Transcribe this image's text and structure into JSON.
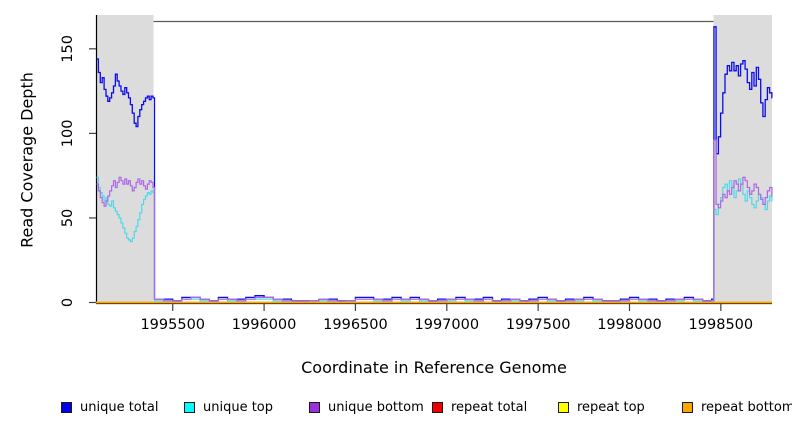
{
  "figure": {
    "background": "#FFFFFF",
    "plot_background": "#FFFFFF"
  },
  "chart_data": {
    "type": "line",
    "title": "",
    "xlabel": "Coordinate in Reference Genome",
    "ylabel": "Read Coverage Depth",
    "xlim": [
      1995080,
      1998780
    ],
    "ylim": [
      0,
      170
    ],
    "xticks": [
      1995500,
      1996000,
      1996500,
      1997000,
      1997500,
      1998000,
      1998500
    ],
    "yticks": [
      0,
      50,
      100,
      150
    ],
    "grid": false,
    "legend_position": "bottom",
    "shade_color": "#DCDCDC",
    "shaded_regions": [
      {
        "x0": 1995080,
        "x1": 1995395
      },
      {
        "x0": 1998460,
        "x1": 1998780
      }
    ],
    "legend": [
      {
        "label": "unique total",
        "color": "#0000EE"
      },
      {
        "label": "unique top",
        "color": "#00FFFF"
      },
      {
        "label": "unique bottom",
        "color": "#9B30D9"
      },
      {
        "label": "repeat total",
        "color": "#EE0000"
      },
      {
        "label": "repeat top",
        "color": "#FFFF00"
      },
      {
        "label": "repeat bottom",
        "color": "#FFA500"
      }
    ],
    "series": [
      {
        "name": "unique total",
        "color": "#0B0BEE",
        "width": 1.3,
        "segments": [
          {
            "x0": 1995083,
            "dx": 10.3,
            "y": [
              144,
              136,
              130,
              133,
              126,
              122,
              119,
              121,
              124,
              128,
              135,
              131,
              128,
              125,
              123,
              127,
              124,
              121,
              117,
              112,
              106,
              104,
              110,
              114,
              117,
              119,
              121,
              122,
              120,
              122,
              121
            ]
          },
          {
            "x0": 1995400,
            "dx": 50,
            "y": [
              2,
              2,
              1,
              3,
              3,
              2,
              1,
              3,
              2,
              2,
              3,
              4,
              3,
              2,
              2,
              1,
              1,
              1,
              2,
              2,
              1,
              1,
              3,
              3,
              2,
              2,
              3,
              2,
              3,
              2,
              1,
              2,
              2,
              3,
              2,
              2,
              3,
              1,
              2,
              2,
              1,
              2,
              3,
              2,
              1,
              2,
              2,
              3,
              2,
              1,
              1,
              2,
              3,
              2,
              2,
              1,
              2,
              2,
              3,
              2,
              1,
              2
            ]
          },
          {
            "x0": 1998462,
            "dx": 12.2,
            "y": [
              163,
              88,
              98,
              112,
              124,
              135,
              140,
              137,
              142,
              137,
              140,
              134,
              141,
              143,
              138,
              130,
              126,
              136,
              128,
              139,
              132,
              118,
              110,
              120,
              127,
              124,
              121
            ]
          }
        ]
      },
      {
        "name": "unique top",
        "color": "#4FD9E8",
        "width": 1.2,
        "segments": [
          {
            "x0": 1995083,
            "dx": 10.3,
            "y": [
              74,
              68,
              65,
              63,
              60,
              62,
              58,
              57,
              60,
              56,
              54,
              52,
              50,
              47,
              44,
              41,
              38,
              37,
              36,
              38,
              42,
              45,
              49,
              53,
              58,
              61,
              63,
              65,
              64,
              66,
              65
            ]
          },
          {
            "x0": 1995400,
            "dx": 50,
            "y": [
              1,
              1,
              0,
              2,
              2,
              1,
              0,
              2,
              1,
              1,
              2,
              2,
              2,
              1,
              1,
              0,
              0,
              1,
              1,
              1,
              0,
              1,
              2,
              2,
              1,
              1,
              2,
              1,
              2,
              1,
              0,
              1,
              1,
              2,
              1,
              1,
              2,
              0,
              1,
              1,
              0,
              1,
              2,
              1,
              0,
              1,
              1,
              2,
              1,
              0,
              0,
              1,
              2,
              1,
              1,
              0,
              1,
              1,
              2,
              1,
              0,
              1
            ]
          },
          {
            "x0": 1998462,
            "dx": 12.2,
            "y": [
              55,
              52,
              58,
              62,
              68,
              70,
              66,
              72,
              69,
              62,
              66,
              73,
              70,
              64,
              60,
              66,
              62,
              58,
              56,
              60,
              64,
              62,
              58,
              55,
              60,
              63,
              60
            ]
          }
        ]
      },
      {
        "name": "unique bottom",
        "color": "#AC68E6",
        "width": 1.2,
        "segments": [
          {
            "x0": 1995083,
            "dx": 10.3,
            "y": [
              70,
              66,
              62,
              59,
              57,
              60,
              63,
              66,
              69,
              72,
              68,
              71,
              74,
              72,
              70,
              73,
              70,
              72,
              69,
              66,
              68,
              71,
              73,
              70,
              72,
              69,
              67,
              70,
              72,
              71,
              68
            ]
          },
          {
            "x0": 1995400,
            "dx": 50,
            "y": [
              2,
              1,
              1,
              2,
              3,
              2,
              1,
              2,
              2,
              1,
              2,
              3,
              3,
              2,
              1,
              1,
              1,
              1,
              2,
              1,
              1,
              1,
              2,
              2,
              2,
              1,
              2,
              2,
              2,
              2,
              1,
              1,
              2,
              2,
              2,
              1,
              2,
              1,
              1,
              2,
              1,
              1,
              2,
              2,
              1,
              1,
              2,
              2,
              2,
              1,
              1,
              1,
              2,
              2,
              1,
              1,
              1,
              2,
              2,
              2,
              1,
              1
            ]
          },
          {
            "x0": 1998462,
            "dx": 12.2,
            "y": [
              96,
              58,
              56,
              60,
              64,
              62,
              66,
              64,
              68,
              72,
              70,
              66,
              70,
              74,
              72,
              68,
              64,
              66,
              70,
              68,
              64,
              61,
              58,
              62,
              66,
              68,
              63
            ]
          }
        ]
      },
      {
        "name": "repeat total",
        "color": "#EE0000",
        "width": 1.4,
        "segments": [
          {
            "x0": 1995080,
            "dx": 3700,
            "y": [
              0,
              0
            ]
          }
        ]
      },
      {
        "name": "repeat top",
        "color": "#FFFF00",
        "width": 1.4,
        "segments": [
          {
            "x0": 1995080,
            "dx": 3700,
            "y": [
              0,
              0
            ]
          }
        ]
      },
      {
        "name": "repeat bottom",
        "color": "#FFA500",
        "width": 1.5,
        "segments": [
          {
            "x0": 1995080,
            "dx": 3700,
            "y": [
              0,
              0
            ]
          }
        ]
      }
    ]
  }
}
